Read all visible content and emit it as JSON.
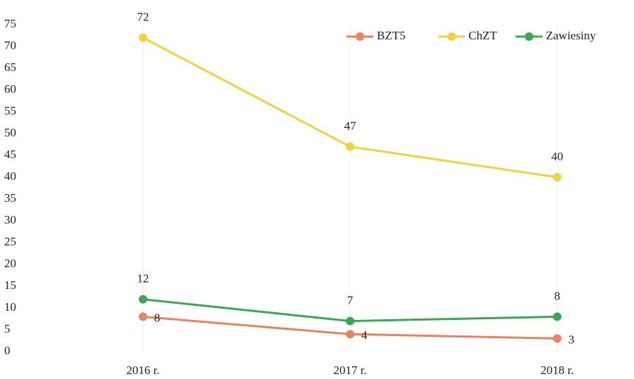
{
  "chart_data": {
    "type": "line",
    "categories": [
      "2016 r.",
      "2017 r.",
      "2018 r."
    ],
    "series": [
      {
        "name": "BZT5",
        "color": "#e8835c",
        "values": [
          8,
          4,
          3
        ]
      },
      {
        "name": "ChZT",
        "color": "#efd23f",
        "values": [
          72,
          47,
          40
        ]
      },
      {
        "name": "Zawiesiny",
        "color": "#3ca653",
        "values": [
          12,
          7,
          8
        ]
      }
    ],
    "ylim": [
      0,
      75
    ],
    "yticks": [
      0,
      5,
      10,
      15,
      20,
      25,
      30,
      35,
      40,
      45,
      50,
      55,
      60,
      65,
      70,
      75
    ],
    "grid": "x",
    "legend": "upper right"
  }
}
